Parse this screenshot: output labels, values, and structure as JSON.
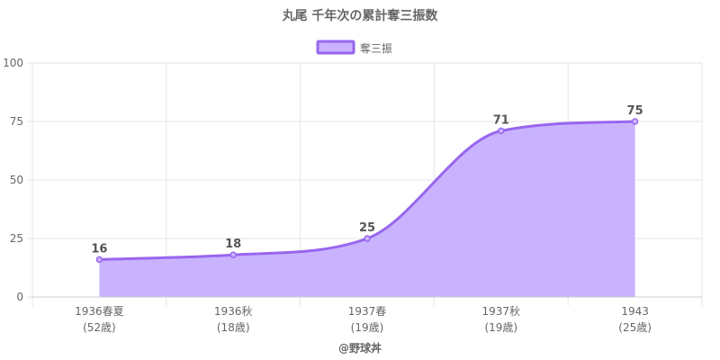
{
  "chart_data": {
    "type": "area",
    "title": "丸尾 千年次の累計奪三振数",
    "categories": [
      "1936春夏",
      "1936秋",
      "1937春",
      "1937秋",
      "1943"
    ],
    "sub_labels": [
      "(52歳)",
      "(18歳)",
      "(19歳)",
      "(19歳)",
      "(25歳)"
    ],
    "series": [
      {
        "name": "奪三振",
        "values": [
          16,
          18,
          25,
          71,
          75
        ],
        "data_labels": [
          "16",
          "18",
          "25",
          "71",
          "75"
        ]
      }
    ],
    "ylim": [
      0,
      100
    ],
    "yticks": [
      0,
      25,
      50,
      75,
      100
    ],
    "ytick_labels": [
      "0",
      "25",
      "50",
      "75",
      "100"
    ],
    "grid": true,
    "legend_position": "top",
    "source": "@野球丼",
    "colors": {
      "line": "#9966ee",
      "fill": "#c9b3ff",
      "grid": "#e6e6e6",
      "axis": "#cccccc",
      "text": "#666666",
      "label": "#555555"
    }
  }
}
